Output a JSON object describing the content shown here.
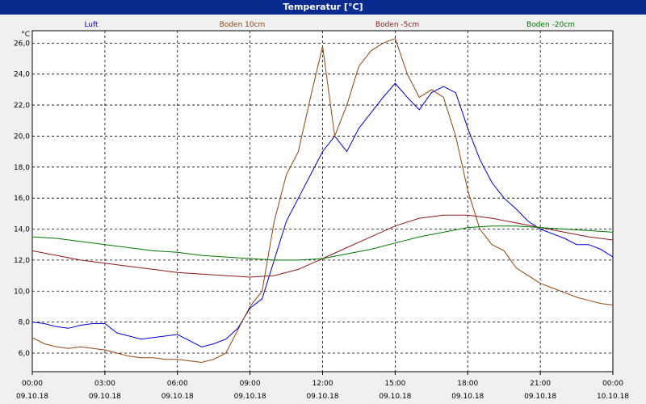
{
  "window": {
    "title": "Temperatur [°C]"
  },
  "chart_data": {
    "type": "line",
    "title": "Temperatur [°C]",
    "ylabel": "°C",
    "xlabel": "",
    "ylim": [
      4.8,
      26.8
    ],
    "xlim": [
      0,
      24
    ],
    "grid": true,
    "legend_position": "top",
    "y_ticks": [
      "6,0",
      "8,0",
      "10,0",
      "12,0",
      "14,0",
      "16,0",
      "18,0",
      "20,0",
      "22,0",
      "24,0",
      "26,0"
    ],
    "y_tick_values": [
      6,
      8,
      10,
      12,
      14,
      16,
      18,
      20,
      22,
      24,
      26
    ],
    "x_tick_values": [
      0,
      3,
      6,
      9,
      12,
      15,
      18,
      21,
      24
    ],
    "x_ticks": [
      {
        "time": "00:00",
        "date": "09.10.18"
      },
      {
        "time": "03:00",
        "date": "09.10.18"
      },
      {
        "time": "06:00",
        "date": "09.10.18"
      },
      {
        "time": "09:00",
        "date": "09.10.18"
      },
      {
        "time": "12:00",
        "date": "09.10.18"
      },
      {
        "time": "15:00",
        "date": "09.10.18"
      },
      {
        "time": "18:00",
        "date": "09.10.18"
      },
      {
        "time": "21:00",
        "date": "09.10.18"
      },
      {
        "time": "00:00",
        "date": "10.10.18"
      }
    ],
    "series": [
      {
        "name": "Luft",
        "color": "#0000cc",
        "x": [
          0,
          0.5,
          1,
          1.5,
          2,
          2.5,
          3,
          3.5,
          4,
          4.5,
          5,
          5.5,
          6,
          6.5,
          7,
          7.5,
          8,
          8.5,
          9,
          9.5,
          10,
          10.5,
          11,
          11.5,
          12,
          12.5,
          13,
          13.5,
          14,
          14.5,
          15,
          15.5,
          16,
          16.5,
          17,
          17.5,
          18,
          18.5,
          19,
          19.5,
          20,
          20.5,
          21,
          21.5,
          22,
          22.5,
          23,
          23.5,
          24
        ],
        "values": [
          8.0,
          7.9,
          7.7,
          7.6,
          7.8,
          7.9,
          7.9,
          7.3,
          7.1,
          6.9,
          7.0,
          7.1,
          7.2,
          6.8,
          6.4,
          6.6,
          6.9,
          7.6,
          8.9,
          9.5,
          12.0,
          14.5,
          16.0,
          17.5,
          19.0,
          20.0,
          19.0,
          20.5,
          21.5,
          22.5,
          23.4,
          22.5,
          21.7,
          22.8,
          23.2,
          22.8,
          20.5,
          18.5,
          17.0,
          16.0,
          15.3,
          14.5,
          14.0,
          13.7,
          13.4,
          13.0,
          13.0,
          12.7,
          12.2
        ]
      },
      {
        "name": "Boden 10cm",
        "color": "#8b4513",
        "x": [
          0,
          0.5,
          1,
          1.5,
          2,
          2.5,
          3,
          3.5,
          4,
          4.5,
          5,
          5.5,
          6,
          6.5,
          7,
          7.5,
          8,
          8.5,
          9,
          9.5,
          10,
          10.5,
          11,
          11.5,
          12,
          12.5,
          13,
          13.5,
          14,
          14.5,
          15,
          15.5,
          16,
          16.5,
          17,
          17.5,
          18,
          18.5,
          19,
          19.5,
          20,
          20.5,
          21,
          21.5,
          22,
          22.5,
          23,
          23.5,
          24
        ],
        "values": [
          7.0,
          6.6,
          6.4,
          6.3,
          6.4,
          6.3,
          6.2,
          6.0,
          5.8,
          5.7,
          5.7,
          5.6,
          5.6,
          5.5,
          5.4,
          5.6,
          6.0,
          7.5,
          9.0,
          10.0,
          14.5,
          17.5,
          19.0,
          22.5,
          25.8,
          20.0,
          22.0,
          24.5,
          25.5,
          26.0,
          26.3,
          24.0,
          22.5,
          23.0,
          22.5,
          20.0,
          16.5,
          14.0,
          13.0,
          12.6,
          11.5,
          11.0,
          10.5,
          10.2,
          9.9,
          9.6,
          9.4,
          9.2,
          9.1
        ]
      },
      {
        "name": "Boden -5cm",
        "color": "#8b1a1a",
        "x": [
          0,
          1,
          2,
          3,
          4,
          5,
          6,
          7,
          8,
          9,
          10,
          11,
          12,
          13,
          14,
          15,
          16,
          17,
          18,
          19,
          20,
          21,
          22,
          23,
          24
        ],
        "values": [
          12.6,
          12.3,
          12.0,
          11.8,
          11.6,
          11.4,
          11.2,
          11.1,
          11.0,
          10.9,
          11.0,
          11.4,
          12.1,
          12.8,
          13.5,
          14.2,
          14.7,
          14.9,
          14.9,
          14.7,
          14.4,
          14.1,
          13.8,
          13.5,
          13.3
        ]
      },
      {
        "name": "Boden -20cm",
        "color": "#007700",
        "x": [
          0,
          1,
          2,
          3,
          4,
          5,
          6,
          7,
          8,
          9,
          10,
          11,
          12,
          13,
          14,
          15,
          16,
          17,
          18,
          19,
          20,
          21,
          22,
          23,
          24
        ],
        "values": [
          13.5,
          13.4,
          13.2,
          13.0,
          12.8,
          12.6,
          12.5,
          12.3,
          12.2,
          12.1,
          12.0,
          12.0,
          12.1,
          12.4,
          12.7,
          13.1,
          13.5,
          13.8,
          14.1,
          14.2,
          14.2,
          14.1,
          14.0,
          13.9,
          13.8
        ]
      }
    ]
  }
}
